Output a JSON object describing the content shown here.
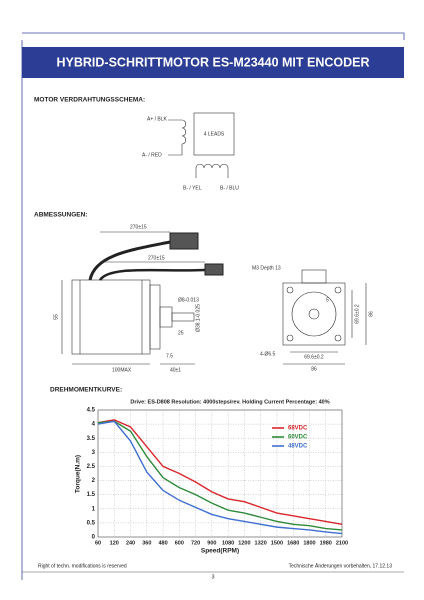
{
  "header": {
    "title": "HYBRID-SCHRITTMOTOR ES-M23440 MIT ENCODER"
  },
  "wiring": {
    "heading": "MOTOR VERDRAHTUNGSSCHEMA:",
    "labels": [
      "A+ / BLK",
      "A- / RED",
      "4 LEADS",
      "B- / YEL",
      "B- / BLU"
    ]
  },
  "dimensions": {
    "heading": "ABMESSUNGEN:",
    "labels": [
      "270±15",
      "270±15",
      "55",
      "Ø8-0.013",
      "Ø38.1-0.025",
      "25",
      "7.5",
      "100MAX",
      "40±1",
      "M3 Depth 13",
      "5",
      "69.6±0.2",
      "86",
      "4-Ø6.5",
      "69.6±0.2",
      "86"
    ]
  },
  "torque": {
    "heading": "DREHMOMENTKURVE:"
  },
  "chart_data": {
    "type": "line",
    "subtitle": "Drive: ES-D808 Resolution: 4000steps/rev. Holding Current Percentage: 40%",
    "x_label": "Speed(RPM)",
    "y_label": "Torque(N.m)",
    "categories": [
      60,
      120,
      240,
      360,
      480,
      600,
      720,
      900,
      1080,
      1200,
      1320,
      1500,
      1680,
      1800,
      1980,
      2100
    ],
    "series": [
      {
        "name": "68VDC",
        "color": "#d9262b",
        "values": [
          4.05,
          4.15,
          3.9,
          3.2,
          2.5,
          2.25,
          1.95,
          1.6,
          1.35,
          1.25,
          1.05,
          0.85,
          0.75,
          0.65,
          0.55,
          0.45
        ]
      },
      {
        "name": "60VDC",
        "color": "#2e8b3a",
        "values": [
          4.05,
          4.1,
          3.75,
          2.85,
          2.1,
          1.75,
          1.5,
          1.2,
          0.95,
          0.85,
          0.7,
          0.55,
          0.45,
          0.4,
          0.3,
          0.25
        ]
      },
      {
        "name": "48VDC",
        "color": "#3f6fd1",
        "values": [
          4.0,
          4.1,
          3.4,
          2.3,
          1.65,
          1.3,
          1.05,
          0.8,
          0.65,
          0.55,
          0.45,
          0.35,
          0.3,
          0.25,
          0.18,
          0.12
        ]
      }
    ],
    "ylim": [
      0,
      4.5
    ],
    "yticks": [
      0,
      0.5,
      1,
      1.5,
      2,
      2.5,
      3,
      3.5,
      4,
      4.5
    ],
    "grid": true
  },
  "footer": {
    "left": "Right of techn. modifications is reserved",
    "right": "Technische Änderungen vorbehalten, 17.12.13",
    "page": "3"
  }
}
